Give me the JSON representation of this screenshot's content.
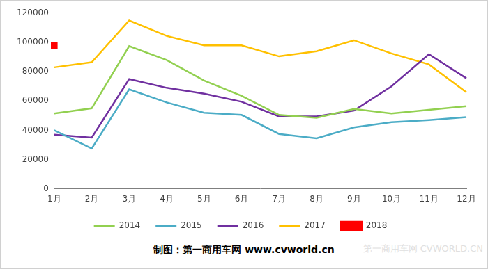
{
  "chart_data": {
    "type": "line",
    "categories": [
      "1月",
      "2月",
      "3月",
      "4月",
      "5月",
      "6月",
      "7月",
      "8月",
      "9月",
      "10月",
      "11月",
      "12月"
    ],
    "series": [
      {
        "name": "2014",
        "color": "#92D050",
        "marker": "none",
        "line_style": "solid",
        "values": [
          51500,
          55000,
          97500,
          88000,
          74000,
          63500,
          50500,
          48500,
          54500,
          51500,
          54000,
          56500
        ]
      },
      {
        "name": "2015",
        "color": "#4BACC6",
        "marker": "none",
        "line_style": "solid",
        "values": [
          40000,
          27500,
          68000,
          59000,
          52000,
          50500,
          37500,
          34500,
          42000,
          45500,
          47000,
          49000
        ]
      },
      {
        "name": "2016",
        "color": "#7030A0",
        "marker": "none",
        "line_style": "solid",
        "values": [
          37000,
          35000,
          75000,
          69000,
          65000,
          59500,
          49500,
          49500,
          53500,
          70000,
          92000,
          75500
        ]
      },
      {
        "name": "2017",
        "color": "#FFC000",
        "marker": "none",
        "line_style": "solid",
        "values": [
          83000,
          86500,
          115000,
          104500,
          98000,
          98000,
          90500,
          94000,
          101500,
          92500,
          85000,
          66000
        ]
      },
      {
        "name": "2018",
        "color": "#FF0000",
        "marker": "square",
        "line_style": "solid",
        "values": [
          98000,
          null,
          null,
          null,
          null,
          null,
          null,
          null,
          null,
          null,
          null,
          null
        ]
      }
    ],
    "ylim": [
      0,
      120000
    ],
    "yticks": [
      0,
      20000,
      40000,
      60000,
      80000,
      100000,
      120000
    ],
    "grid": false,
    "legend": "bottom",
    "source": "制图：第一商用车网 www.cvworld.cn",
    "watermark": "第一商用车网 CVWORLD.CN"
  }
}
